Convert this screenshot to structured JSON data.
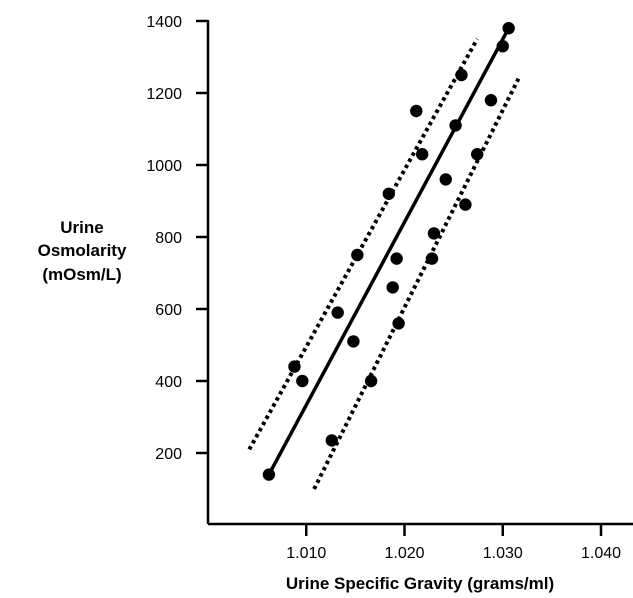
{
  "chart_data": {
    "type": "scatter",
    "xlabel": "Urine Specific Gravity (grams/ml)",
    "ylabel_lines": [
      "Urine",
      "Osmolarity",
      "(mOsm/L)"
    ],
    "xlim": [
      1.0,
      1.04
    ],
    "ylim": [
      0,
      1400
    ],
    "xticks": [
      "1.010",
      "1.020",
      "1.030",
      "1.040"
    ],
    "yticks": [
      "200",
      "400",
      "600",
      "800",
      "1000",
      "1200",
      "1400"
    ],
    "grid": false,
    "points": [
      {
        "x": 1.0062,
        "y": 140
      },
      {
        "x": 1.0088,
        "y": 440
      },
      {
        "x": 1.0096,
        "y": 400
      },
      {
        "x": 1.0126,
        "y": 235
      },
      {
        "x": 1.0132,
        "y": 590
      },
      {
        "x": 1.0148,
        "y": 510
      },
      {
        "x": 1.0152,
        "y": 750
      },
      {
        "x": 1.0166,
        "y": 400
      },
      {
        "x": 1.0184,
        "y": 920
      },
      {
        "x": 1.0188,
        "y": 660
      },
      {
        "x": 1.0192,
        "y": 740
      },
      {
        "x": 1.0194,
        "y": 560
      },
      {
        "x": 1.0212,
        "y": 1150
      },
      {
        "x": 1.0218,
        "y": 1030
      },
      {
        "x": 1.0228,
        "y": 740
      },
      {
        "x": 1.023,
        "y": 810
      },
      {
        "x": 1.0242,
        "y": 960
      },
      {
        "x": 1.0252,
        "y": 1110
      },
      {
        "x": 1.0258,
        "y": 1250
      },
      {
        "x": 1.0262,
        "y": 890
      },
      {
        "x": 1.0274,
        "y": 1030
      },
      {
        "x": 1.0288,
        "y": 1180
      },
      {
        "x": 1.03,
        "y": 1330
      },
      {
        "x": 1.0306,
        "y": 1380
      }
    ],
    "regression_line": {
      "x": [
        1.0062,
        1.0306
      ],
      "y": [
        140,
        1380
      ]
    },
    "upper_bound_line": {
      "x": [
        1.0042,
        1.0274
      ],
      "y": [
        210,
        1350
      ]
    },
    "lower_bound_line": {
      "x": [
        1.0108,
        1.0316
      ],
      "y": [
        100,
        1240
      ]
    }
  }
}
